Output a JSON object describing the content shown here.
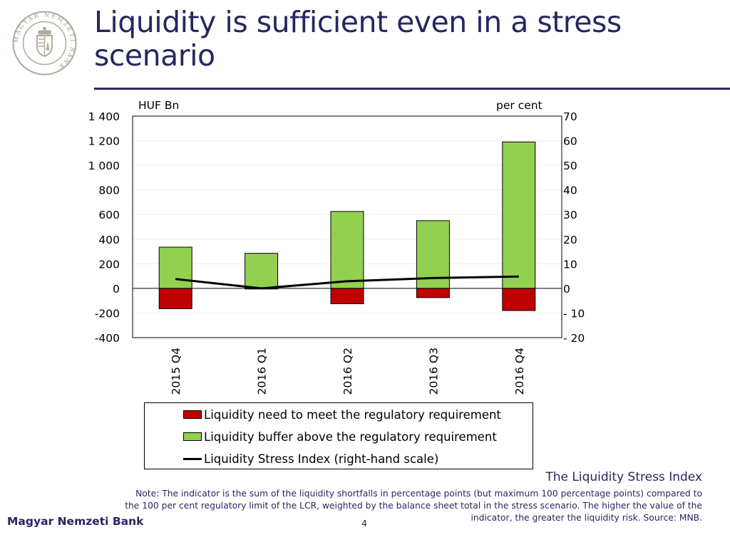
{
  "slide": {
    "title": "Liquidity is sufficient even in a stress scenario",
    "note_title": "The Liquidity Stress Index",
    "note": "Note: The indicator is the sum of the liquidity shortfalls in percentage points (but maximum 100 percentage points) compared to the 100 per cent regulatory limit of the LCR, weighted by the balance sheet total in the stress scenario. The higher the value of the indicator, the greater the liquidity risk. Source: MNB.",
    "footer_bank": "Magyar Nemzeti Bank",
    "page_number": "4",
    "logo_text": "MAGYAR NEMZETI BANK"
  },
  "chart_data": {
    "type": "bar",
    "left_unit": "HUF Bn",
    "right_unit": "per cent",
    "categories": [
      "2015 Q4",
      "2016 Q1",
      "2016 Q2",
      "2016 Q3",
      "2016 Q4"
    ],
    "series": [
      {
        "name": "Liquidity need to meet the regulatory requirement",
        "axis": "left",
        "kind": "bar",
        "color": "#c00000",
        "values": [
          -165,
          -5,
          -125,
          -75,
          -180
        ]
      },
      {
        "name": "Liquidity buffer above the regulatory requirement",
        "axis": "left",
        "kind": "bar",
        "color": "#92d050",
        "values": [
          335,
          285,
          625,
          550,
          1190
        ]
      },
      {
        "name": "Liquidity Stress Index (right-hand scale)",
        "axis": "right",
        "kind": "line",
        "color": "#000000",
        "values": [
          3.8,
          0.0,
          2.9,
          4.2,
          4.8
        ]
      }
    ],
    "ylim_left": [
      -400,
      1400
    ],
    "yticks_left": [
      -400,
      -200,
      0,
      200,
      400,
      600,
      800,
      1000,
      1200,
      1400
    ],
    "ytick_labels_left": [
      "-400",
      "-200",
      "0",
      "200",
      "400",
      "600",
      "800",
      "1 000",
      "1 200",
      "1 400"
    ],
    "ylim_right": [
      -20,
      70
    ],
    "yticks_right": [
      -20,
      -10,
      0,
      10,
      20,
      30,
      40,
      50,
      60,
      70
    ],
    "ytick_labels_right": [
      "- 20",
      "- 10",
      "0",
      "10",
      "20",
      "30",
      "40",
      "50",
      "60",
      "70"
    ],
    "grid": true,
    "legend_position": "bottom"
  }
}
